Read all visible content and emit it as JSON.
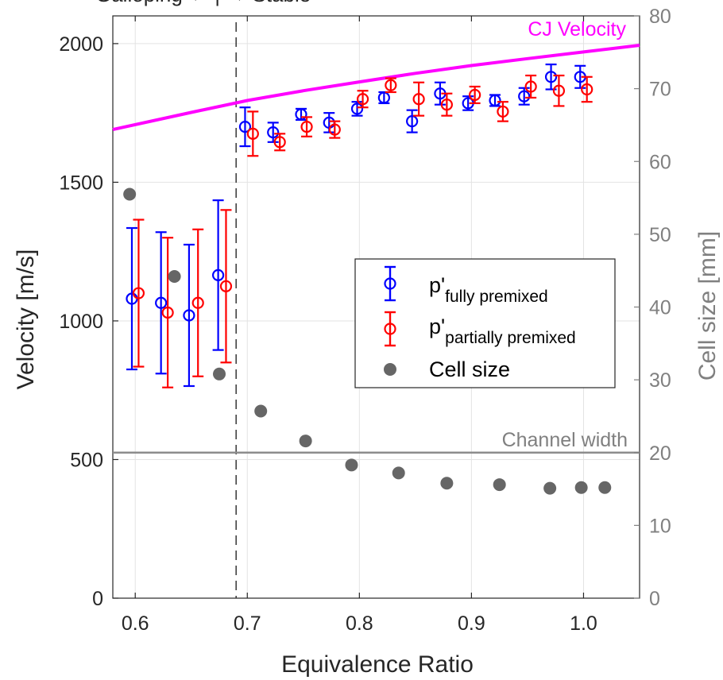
{
  "chart_data": {
    "type": "scatter",
    "top_label": "Galloping ← | → Stable",
    "xlabel": "Equivalence Ratio",
    "ylabel": "Velocity [m/s]",
    "y2label": "Cell size [mm]",
    "xlim": [
      0.58,
      1.05
    ],
    "ylim": [
      0,
      2100
    ],
    "y2lim": [
      0,
      80
    ],
    "x_ticks": [
      "0.6",
      "0.7",
      "0.8",
      "0.9",
      "1.0"
    ],
    "y_ticks": [
      "0",
      "500",
      "1000",
      "1500",
      "2000"
    ],
    "y2_ticks": [
      "0",
      "10",
      "20",
      "30",
      "40",
      "50",
      "60",
      "70",
      "80"
    ],
    "grid": true,
    "legend_position": "center-right",
    "transition_phi": 0.69,
    "cj_velocity": {
      "label": "CJ Velocity",
      "color": "#ff00ff",
      "x": [
        0.58,
        0.65,
        0.7,
        0.75,
        0.8,
        0.85,
        0.9,
        0.95,
        1.0,
        1.05
      ],
      "y": [
        1690,
        1752,
        1795,
        1830,
        1862,
        1893,
        1921,
        1946,
        1970,
        1994
      ]
    },
    "channel_width": {
      "label": "Channel width",
      "value_mm": 20,
      "color": "#8c8c8c"
    },
    "series": [
      {
        "name": "p'fully premixed",
        "legend_main": "p'",
        "legend_sub": "fully premixed",
        "color": "#0000ff",
        "x": [
          0.597,
          0.623,
          0.648,
          0.674,
          0.698,
          0.723,
          0.748,
          0.773,
          0.798,
          0.822,
          0.847,
          0.872,
          0.897,
          0.921,
          0.947,
          0.971,
          0.997
        ],
        "y": [
          1080,
          1065,
          1020,
          1165,
          1700,
          1680,
          1745,
          1715,
          1765,
          1805,
          1720,
          1820,
          1785,
          1795,
          1810,
          1880,
          1880
        ],
        "err": [
          255,
          255,
          255,
          270,
          70,
          35,
          20,
          35,
          25,
          20,
          40,
          40,
          25,
          20,
          30,
          45,
          40
        ]
      },
      {
        "name": "p'partially premixed",
        "legend_main": "p'",
        "legend_sub": "partially premixed",
        "color": "#ff0000",
        "x": [
          0.603,
          0.629,
          0.656,
          0.681,
          0.705,
          0.729,
          0.753,
          0.778,
          0.803,
          0.828,
          0.853,
          0.878,
          0.903,
          0.928,
          0.953,
          0.978,
          1.003
        ],
        "y": [
          1100,
          1030,
          1065,
          1125,
          1675,
          1645,
          1700,
          1690,
          1800,
          1850,
          1800,
          1780,
          1815,
          1755,
          1845,
          1830,
          1835
        ],
        "err": [
          265,
          270,
          265,
          275,
          80,
          30,
          35,
          30,
          30,
          25,
          60,
          40,
          30,
          35,
          40,
          55,
          45
        ]
      },
      {
        "name": "Cell size",
        "color": "#666666",
        "axis": "right",
        "x": [
          0.595,
          0.635,
          0.675,
          0.712,
          0.752,
          0.793,
          0.835,
          0.878,
          0.925,
          0.97,
          0.998,
          1.019
        ],
        "y": [
          55.5,
          44.2,
          30.8,
          25.7,
          21.6,
          18.3,
          17.2,
          15.8,
          15.6,
          15.1,
          15.2,
          15.2
        ]
      }
    ]
  }
}
